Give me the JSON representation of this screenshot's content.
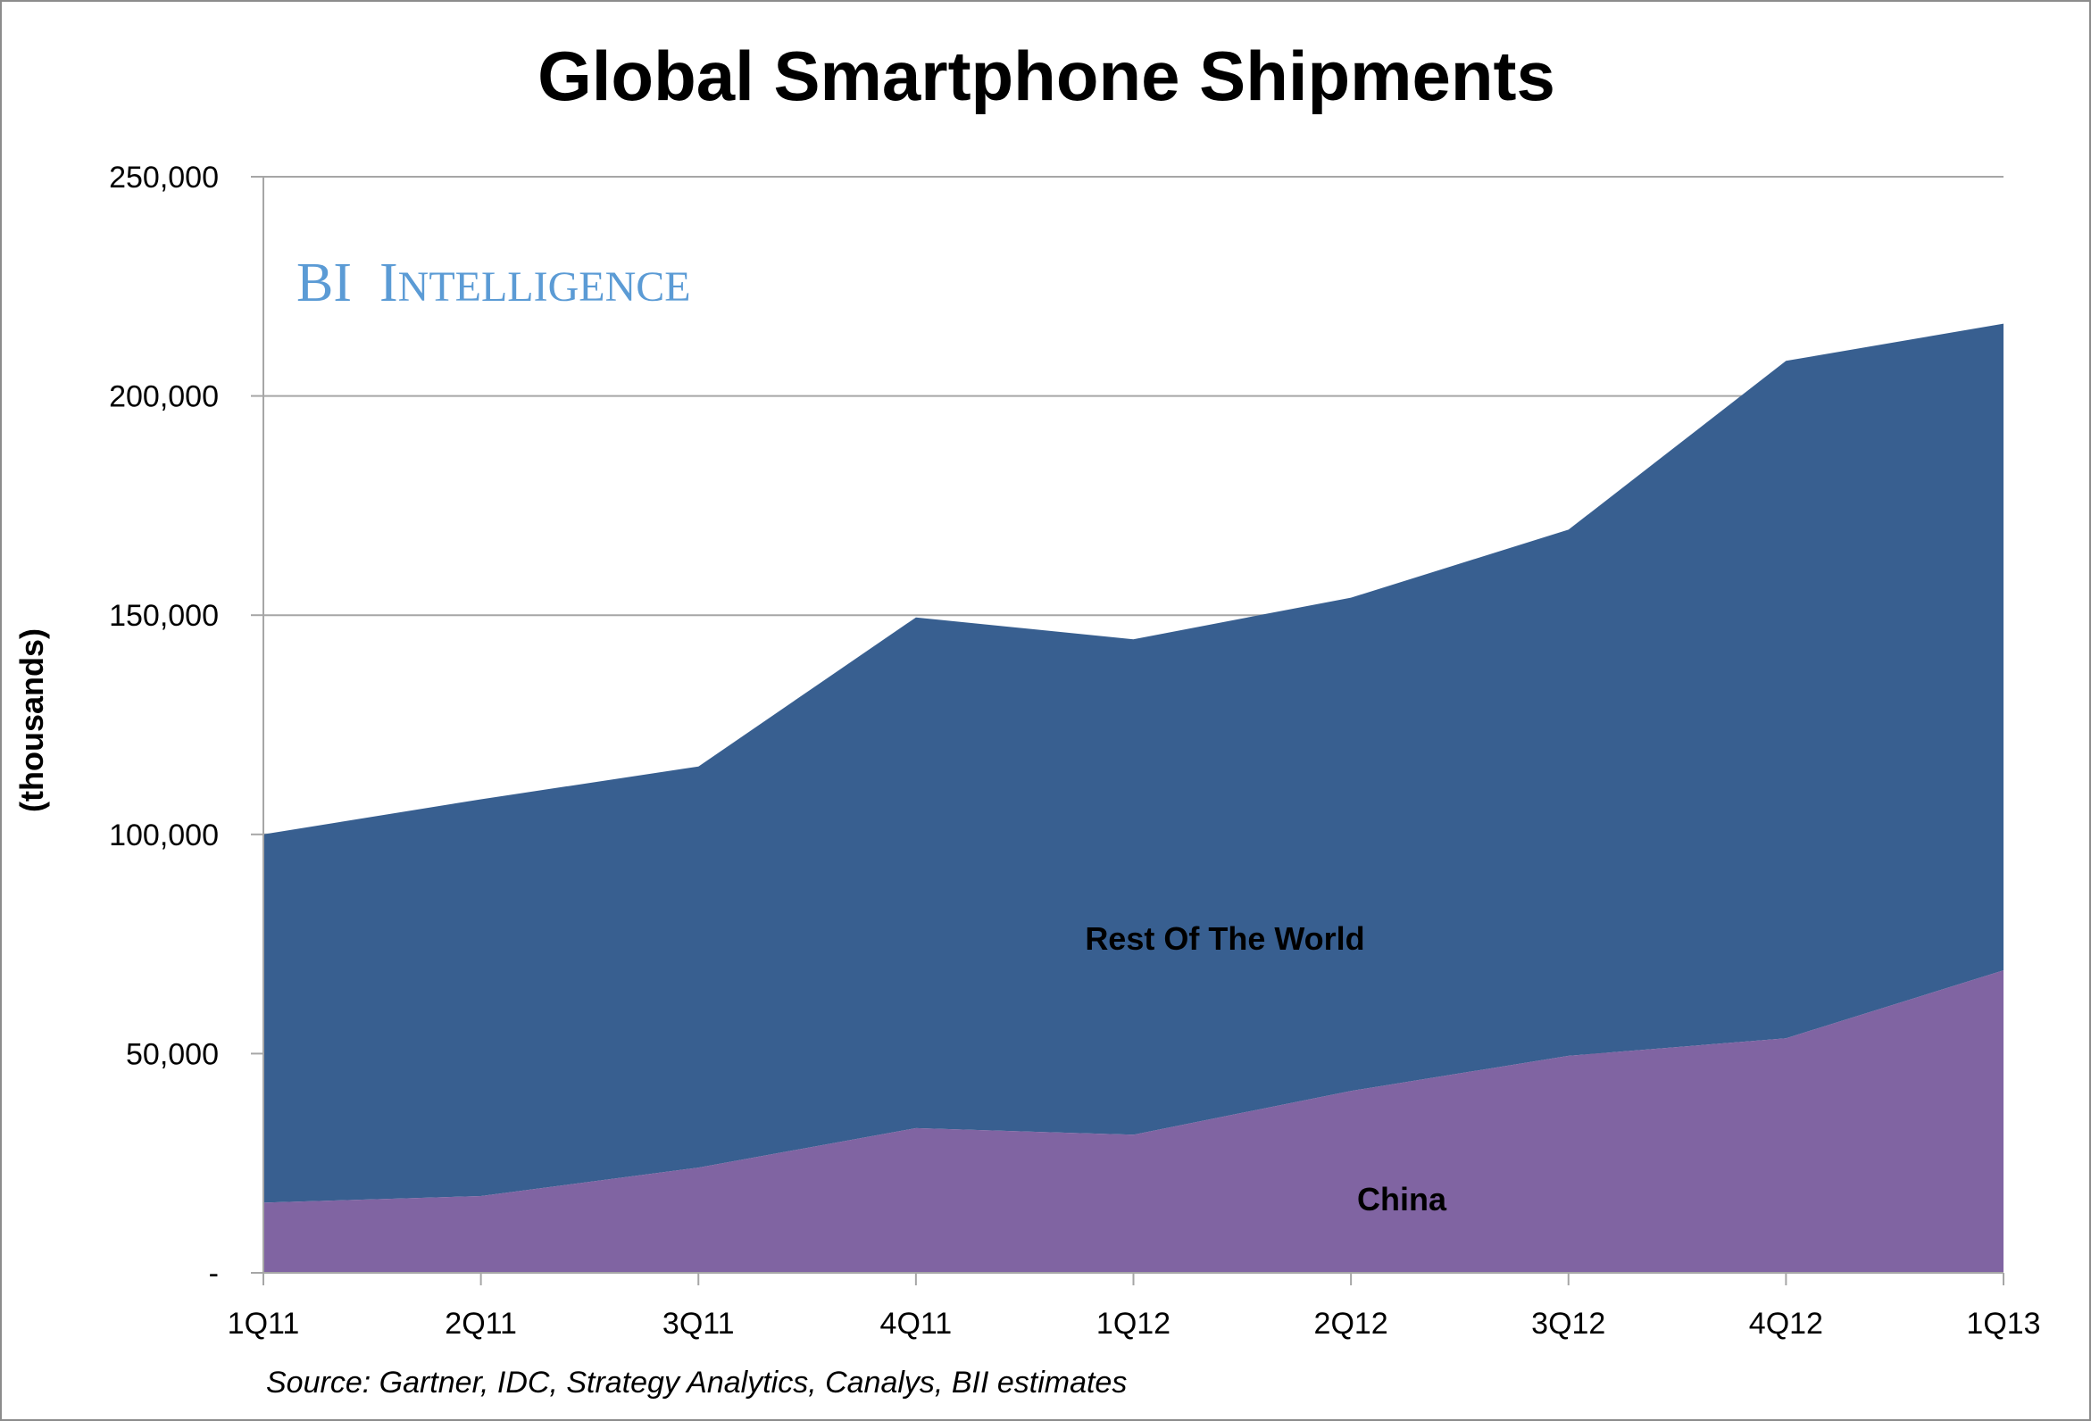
{
  "chart_data": {
    "type": "area",
    "stacked": true,
    "title": "Global Smartphone Shipments",
    "ylabel": "(thousands)",
    "xlabel": "",
    "categories": [
      "1Q11",
      "2Q11",
      "3Q11",
      "4Q11",
      "1Q12",
      "2Q12",
      "3Q12",
      "4Q12",
      "1Q13"
    ],
    "series": [
      {
        "name": "China",
        "color": "#8064a2",
        "values": [
          16000,
          17500,
          24000,
          33000,
          31500,
          41500,
          49500,
          53500,
          69000
        ]
      },
      {
        "name": "Rest Of The World",
        "color": "#385f90",
        "values": [
          84000,
          90500,
          91500,
          116500,
          113000,
          112500,
          120000,
          154500,
          147500
        ]
      }
    ],
    "totals": [
      100000,
      108000,
      115500,
      149500,
      144500,
      154000,
      169500,
      208000,
      216500
    ],
    "ylim": [
      0,
      250000
    ],
    "yticks": [
      0,
      50000,
      100000,
      150000,
      200000,
      250000
    ],
    "ytick_labels": [
      "-",
      "50,000",
      "100,000",
      "150,000",
      "200,000",
      "250,000"
    ],
    "grid": true,
    "legend": "none",
    "source": "Source: Gartner, IDC, Strategy Analytics, Canalys, BII estimates",
    "watermark": "BI Intelligence"
  },
  "colors": {
    "china": "#8064a2",
    "rest_of_world": "#385f90",
    "gridline": "#a6a6a6",
    "watermark": "#5b9bd5"
  }
}
